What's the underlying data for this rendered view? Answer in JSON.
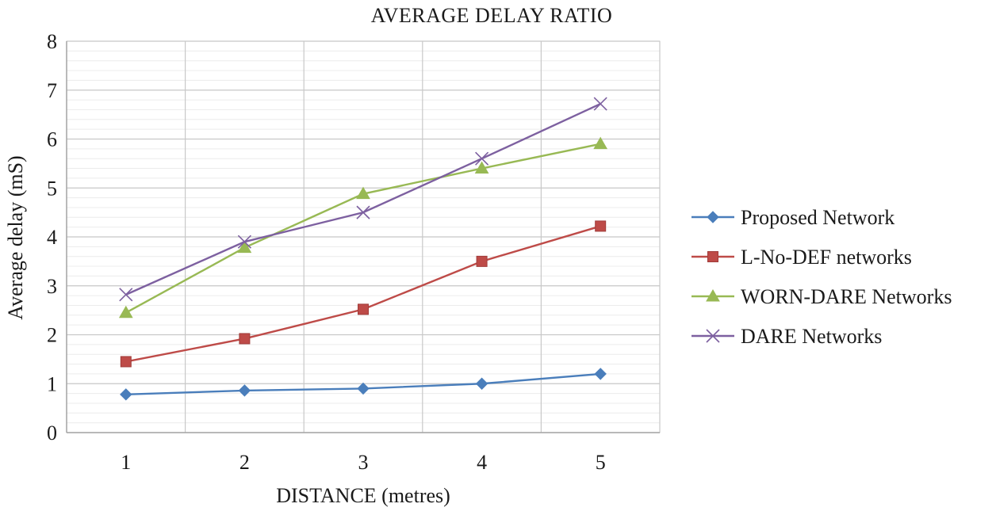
{
  "chart_data": {
    "type": "line",
    "title": "AVERAGE  DELAY RATIO",
    "xlabel": "DISTANCE (metres)",
    "ylabel": "Average delay (mS)",
    "x": [
      1,
      2,
      3,
      4,
      5
    ],
    "ylim": [
      0,
      8
    ],
    "yticks": [
      0,
      1,
      2,
      3,
      4,
      5,
      6,
      7,
      8
    ],
    "grid": true,
    "legend_position": "right",
    "series": [
      {
        "name": "Proposed Network",
        "values": [
          0.78,
          0.86,
          0.9,
          1.0,
          1.2
        ],
        "color": "#4a7ebb",
        "marker": "diamond"
      },
      {
        "name": "L-No-DEF networks",
        "values": [
          1.45,
          1.92,
          2.52,
          3.5,
          4.22
        ],
        "color": "#be4b48",
        "marker": "square"
      },
      {
        "name": "WORN-DARE Networks",
        "values": [
          2.45,
          3.78,
          4.88,
          5.4,
          5.9
        ],
        "color": "#98b954",
        "marker": "triangle"
      },
      {
        "name": "DARE Networks",
        "values": [
          2.82,
          3.9,
          4.5,
          5.6,
          6.72
        ],
        "color": "#7d60a0",
        "marker": "x"
      }
    ]
  }
}
